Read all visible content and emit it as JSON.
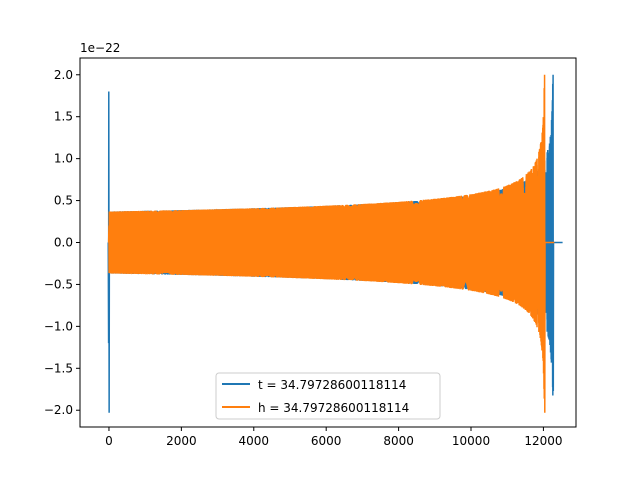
{
  "chart_data": {
    "type": "line",
    "title": "",
    "xlabel": "",
    "ylabel": "",
    "y_offset_label": "1e−22",
    "xlim": [
      -800,
      12900
    ],
    "ylim": [
      -2.2,
      2.2
    ],
    "xticks": [
      0,
      2000,
      4000,
      6000,
      8000,
      10000,
      12000
    ],
    "yticks": [
      -2.0,
      -1.5,
      -1.0,
      -0.5,
      0.0,
      0.5,
      1.0,
      1.5,
      2.0
    ],
    "xtick_labels": [
      "0",
      "2000",
      "4000",
      "6000",
      "8000",
      "10000",
      "12000"
    ],
    "ytick_labels": [
      "−2.0",
      "−1.5",
      "−1.0",
      "−0.5",
      "0.0",
      "0.5",
      "1.0",
      "1.5",
      "2.0"
    ],
    "grid": false,
    "legend_position": "lower-center",
    "series": [
      {
        "name": "t = 34.79728600118114",
        "color": "#1f77b4",
        "x_start": 0,
        "x_end": 12280,
        "amplitude_start": 0.37,
        "amplitude_peak": 2.0,
        "initial_spike": [
          1.8,
          -2.03
        ],
        "final_min": -1.77
      },
      {
        "name": "h = 34.79728600118114",
        "color": "#ff7f0e",
        "x_start": 0,
        "x_end": 12050,
        "amplitude_start": 0.37,
        "amplitude_peak": 2.0,
        "final_min": -2.03
      }
    ]
  }
}
